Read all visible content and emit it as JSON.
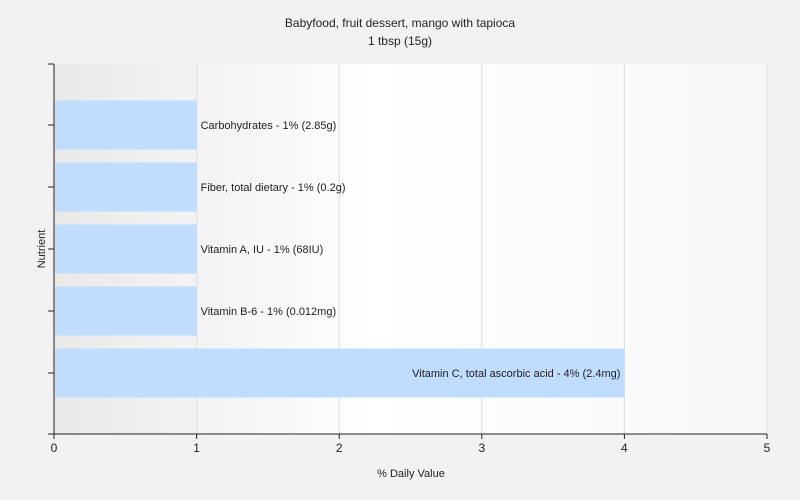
{
  "chart_data": {
    "type": "bar",
    "orientation": "horizontal",
    "title": "Babyfood, fruit dessert, mango with tapioca",
    "subtitle": "1 tbsp (15g)",
    "xlabel": "% Daily Value",
    "ylabel": "Nutrient",
    "xlim": [
      0,
      5
    ],
    "xticks": [
      0,
      1,
      2,
      3,
      4,
      5
    ],
    "grid": true,
    "legend": "none",
    "categories": [
      "Carbohydrates",
      "Fiber, total dietary",
      "Vitamin A, IU",
      "Vitamin B-6",
      "Vitamin C, total ascorbic acid"
    ],
    "values": [
      1,
      1,
      1,
      1,
      4
    ],
    "labels": [
      "Carbohydrates - 1% (2.85g)",
      "Fiber, total dietary - 1% (0.2g)",
      "Vitamin A, IU - 1% (68IU)",
      "Vitamin B-6 - 1% (0.012mg)",
      "Vitamin C, total ascorbic acid - 4% (2.4mg)"
    ],
    "bar_color": "#c0dcff"
  }
}
